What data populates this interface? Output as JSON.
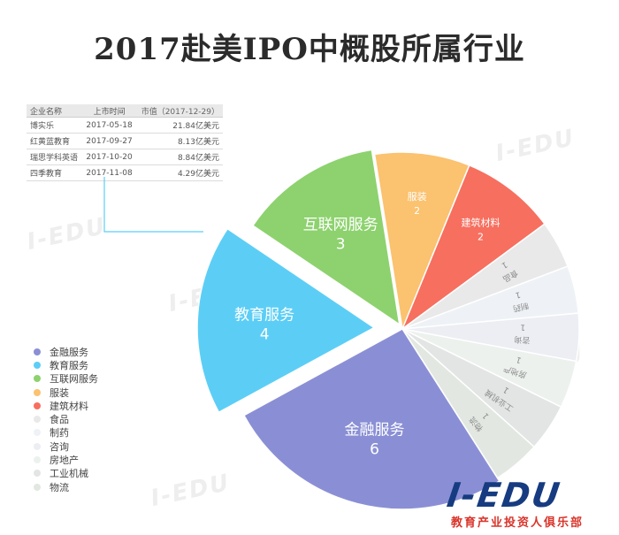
{
  "title": "2017赴美IPO中概股所属行业",
  "table": {
    "headers": [
      "企业名称",
      "上市时间",
      "市值（2017-12-29）"
    ],
    "rows": [
      [
        "博实乐",
        "2017-05-18",
        "21.84亿美元"
      ],
      [
        "红黄蓝教育",
        "2017-09-27",
        "8.13亿美元"
      ],
      [
        "瑞思学科英语",
        "2017-10-20",
        "8.84亿美元"
      ],
      [
        "四季教育",
        "2017-11-08",
        "4.29亿美元"
      ]
    ]
  },
  "chart_data": {
    "type": "pie",
    "title": "2017赴美IPO中概股所属行业",
    "slices": [
      {
        "label": "互联网服务",
        "value": 3,
        "color": "#8dd26e"
      },
      {
        "label": "服装",
        "value": 2,
        "color": "#fbc26f"
      },
      {
        "label": "建筑材料",
        "value": 2,
        "color": "#f76f5f"
      },
      {
        "label": "食品",
        "value": 1,
        "color": "#e9e9e9"
      },
      {
        "label": "制药",
        "value": 1,
        "color": "#eef2f6"
      },
      {
        "label": "咨询",
        "value": 1,
        "color": "#eceef3"
      },
      {
        "label": "房地产",
        "value": 1,
        "color": "#edf1ee"
      },
      {
        "label": "工业机械",
        "value": 1,
        "color": "#e3e5e5"
      },
      {
        "label": "物流",
        "value": 1,
        "color": "#e2e8e1"
      },
      {
        "label": "金融服务",
        "value": 6,
        "color": "#8a8fd5"
      },
      {
        "label": "教育服务",
        "value": 4,
        "color": "#5ccef6"
      }
    ],
    "legend": {
      "position": "left",
      "items": [
        {
          "label": "金融服务",
          "color": "#8a8fd5"
        },
        {
          "label": "教育服务",
          "color": "#5ccef6"
        },
        {
          "label": "互联网服务",
          "color": "#8dd26e"
        },
        {
          "label": "服装",
          "color": "#fbc26f"
        },
        {
          "label": "建筑材料",
          "color": "#f76f5f"
        },
        {
          "label": "食品",
          "color": "#e9e9e9"
        },
        {
          "label": "制药",
          "color": "#eef2f6"
        },
        {
          "label": "咨询",
          "color": "#eceef3"
        },
        {
          "label": "房地产",
          "color": "#edf1ee"
        },
        {
          "label": "工业机械",
          "color": "#e3e5e5"
        },
        {
          "label": "物流",
          "color": "#e2e8e1"
        }
      ]
    }
  },
  "watermark": "I-EDU",
  "logo": {
    "main": "I-EDU",
    "sub": "教育产业投资人俱乐部"
  },
  "colors": {
    "logo_blue": "#163b80",
    "logo_red": "#d9342a"
  }
}
